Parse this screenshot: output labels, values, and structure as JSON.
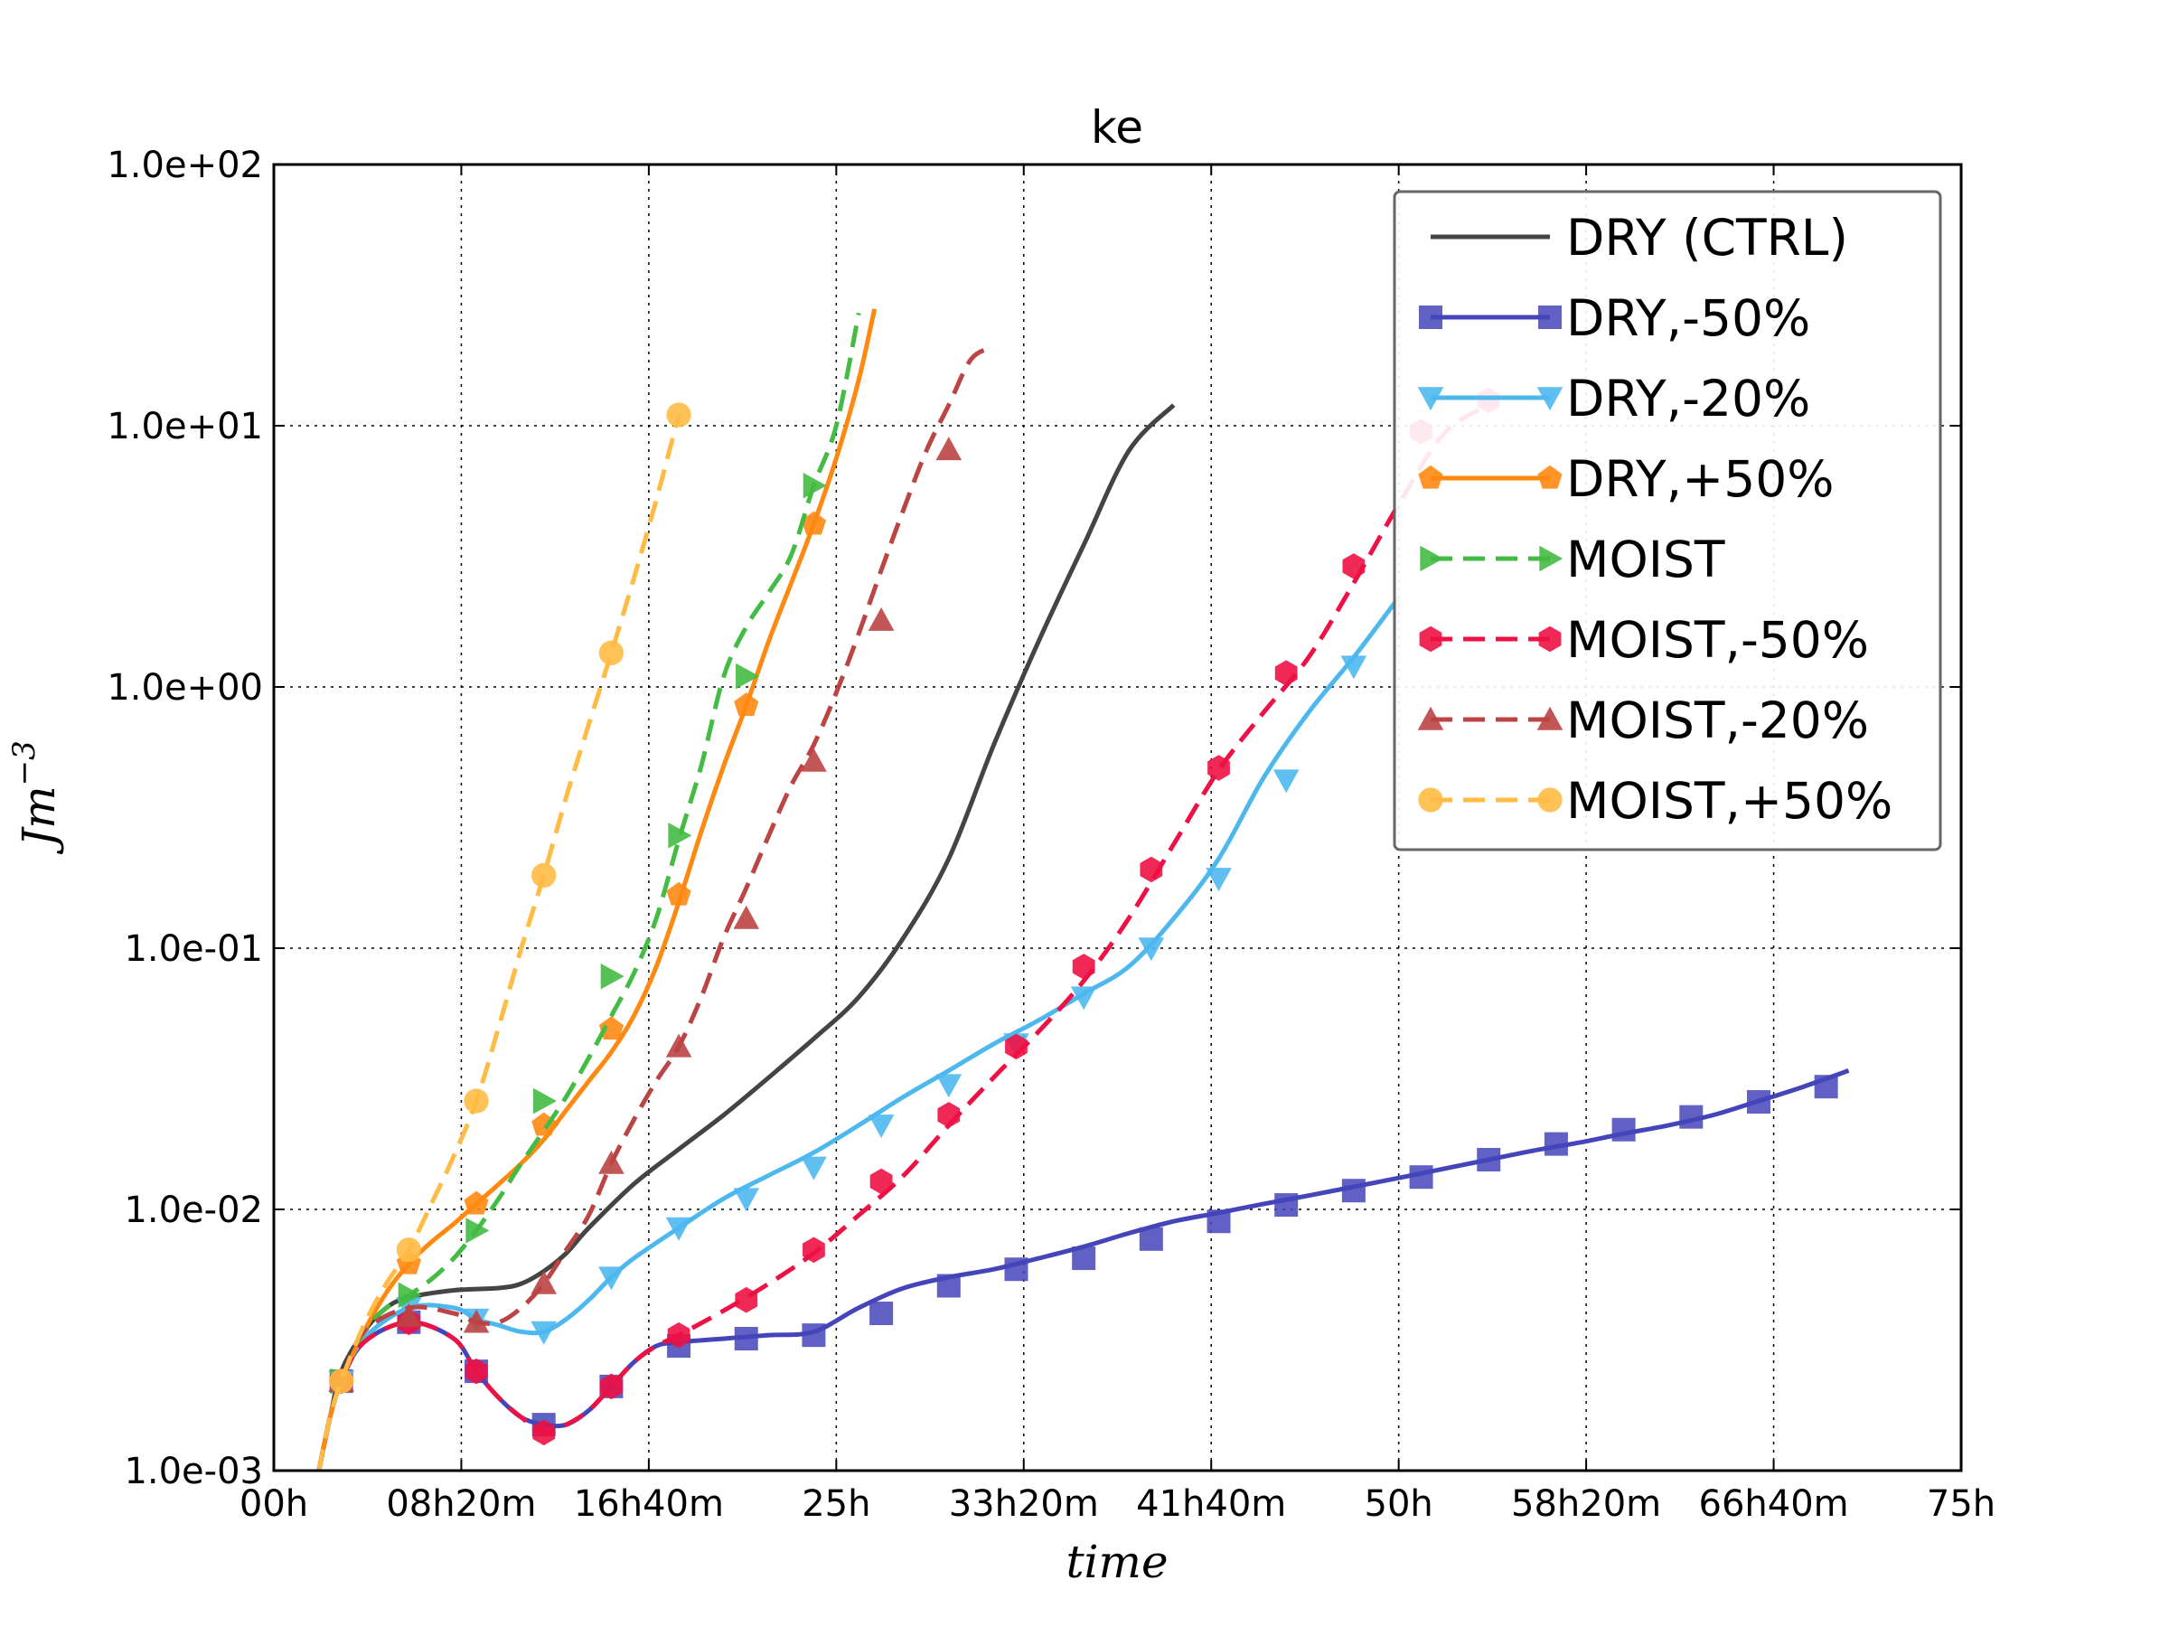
{
  "chart_data": {
    "type": "line",
    "title": "ke",
    "xlabel": "time",
    "ylabel": "Jm",
    "ylabel_sup": "−3",
    "xlim": [
      0,
      75
    ],
    "ylim": [
      0.001,
      100
    ],
    "yscale": "log",
    "grid": true,
    "legend_position": "top-right",
    "x_ticks": [
      {
        "value": 0,
        "label": "00h"
      },
      {
        "value": 8.333,
        "label": "08h20m"
      },
      {
        "value": 16.667,
        "label": "16h40m"
      },
      {
        "value": 25,
        "label": "25h"
      },
      {
        "value": 33.333,
        "label": "33h20m"
      },
      {
        "value": 41.667,
        "label": "41h40m"
      },
      {
        "value": 50,
        "label": "50h"
      },
      {
        "value": 58.333,
        "label": "58h20m"
      },
      {
        "value": 66.667,
        "label": "66h40m"
      },
      {
        "value": 75,
        "label": "75h"
      }
    ],
    "y_ticks": [
      {
        "value": 0.001,
        "label": "1.0e-03"
      },
      {
        "value": 0.01,
        "label": "1.0e-02"
      },
      {
        "value": 0.1,
        "label": "1.0e-01"
      },
      {
        "value": 1,
        "label": "1.0e+00"
      },
      {
        "value": 10,
        "label": "1.0e+01"
      },
      {
        "value": 100,
        "label": "1.0e+02"
      }
    ],
    "series": [
      {
        "name": "DRY (CTRL)",
        "color": "#444444",
        "dash": "solid",
        "marker": "none",
        "x": [
          2,
          2.5,
          3,
          4,
          5,
          6,
          8,
          10,
          11,
          12,
          13,
          14,
          16,
          18,
          20,
          22,
          24,
          26,
          28,
          30,
          32,
          34,
          36,
          38,
          40
        ],
        "y": [
          0.001,
          0.0016,
          0.0024,
          0.0034,
          0.0042,
          0.0046,
          0.0049,
          0.005,
          0.0052,
          0.0058,
          0.0068,
          0.0085,
          0.0125,
          0.017,
          0.023,
          0.032,
          0.045,
          0.065,
          0.11,
          0.22,
          0.6,
          1.5,
          3.5,
          8,
          12
        ]
      },
      {
        "name": "DRY,-50%",
        "color": "#4444bb",
        "dash": "solid",
        "marker": "square",
        "x": [
          2,
          2.5,
          3,
          4,
          6,
          8,
          9,
          10,
          11,
          12,
          13,
          14,
          15,
          16,
          17,
          18,
          20,
          22,
          24,
          26,
          28,
          30,
          32,
          34,
          36,
          38,
          40,
          42,
          44,
          46,
          48,
          50,
          52,
          54,
          56,
          58,
          60,
          62,
          64,
          66,
          68,
          70
        ],
        "y": [
          0.001,
          0.0016,
          0.0022,
          0.0031,
          0.0037,
          0.0032,
          0.0024,
          0.0019,
          0.0016,
          0.0015,
          0.0015,
          0.0017,
          0.0021,
          0.0026,
          0.003,
          0.0031,
          0.0032,
          0.0033,
          0.0034,
          0.0042,
          0.005,
          0.0055,
          0.0059,
          0.0065,
          0.0072,
          0.0081,
          0.009,
          0.0097,
          0.0105,
          0.0113,
          0.0122,
          0.0132,
          0.0143,
          0.0155,
          0.0168,
          0.018,
          0.0195,
          0.021,
          0.023,
          0.026,
          0.0295,
          0.034
        ],
        "marker_x": [
          3,
          6,
          9,
          12,
          15,
          18,
          21,
          24,
          27,
          30,
          33,
          36,
          39,
          42,
          45,
          48,
          51,
          54,
          57,
          60,
          63,
          66,
          69
        ],
        "marker_y": [
          0.0022,
          0.0037,
          0.0024,
          0.0015,
          0.0021,
          0.003,
          0.0032,
          0.0033,
          0.004,
          0.0051,
          0.0059,
          0.0065,
          0.0077,
          0.009,
          0.0104,
          0.0118,
          0.0133,
          0.0155,
          0.0178,
          0.0202,
          0.0226,
          0.0258,
          0.0295
        ]
      },
      {
        "name": "DRY,-20%",
        "color": "#4db8ee",
        "dash": "solid",
        "marker": "triangle-down",
        "x": [
          2,
          2.5,
          3,
          4,
          6,
          8,
          9,
          10,
          11,
          12,
          13,
          14,
          15,
          16,
          18,
          20,
          22,
          24,
          26,
          28,
          30,
          32,
          34,
          36,
          38,
          40,
          42,
          44,
          46,
          48,
          50
        ],
        "y": [
          0.001,
          0.0016,
          0.0022,
          0.0032,
          0.0042,
          0.0042,
          0.0038,
          0.0036,
          0.0034,
          0.0034,
          0.0038,
          0.0045,
          0.0055,
          0.0065,
          0.0085,
          0.011,
          0.0135,
          0.0165,
          0.021,
          0.027,
          0.034,
          0.043,
          0.053,
          0.067,
          0.085,
          0.13,
          0.22,
          0.45,
          0.8,
          1.3,
          2.2
        ],
        "marker_x": [
          3,
          6,
          9,
          12,
          15,
          18,
          21,
          24,
          27,
          30,
          33,
          36,
          39,
          42,
          45,
          48
        ],
        "marker_y": [
          0.0022,
          0.0042,
          0.0038,
          0.0034,
          0.0055,
          0.0085,
          0.011,
          0.0145,
          0.021,
          0.03,
          0.043,
          0.065,
          0.1,
          0.185,
          0.44,
          1.2
        ]
      },
      {
        "name": "DRY,+50%",
        "color": "#ff8811",
        "dash": "solid",
        "marker": "pentagon",
        "x": [
          2,
          2.5,
          3,
          4,
          5,
          6,
          7,
          8,
          9,
          10,
          11,
          12,
          13,
          14,
          15,
          16,
          17,
          18,
          19,
          20,
          21,
          22,
          23,
          24,
          25,
          26,
          26.7
        ],
        "y": [
          0.001,
          0.0016,
          0.0022,
          0.0034,
          0.0048,
          0.0062,
          0.0075,
          0.0088,
          0.0105,
          0.0125,
          0.015,
          0.0185,
          0.024,
          0.031,
          0.04,
          0.055,
          0.085,
          0.15,
          0.28,
          0.5,
          0.85,
          1.5,
          2.5,
          4.2,
          7.5,
          15,
          28
        ],
        "marker_x": [
          3,
          6,
          9,
          12,
          15,
          18,
          21,
          24
        ],
        "marker_y": [
          0.0022,
          0.0062,
          0.0105,
          0.021,
          0.049,
          0.16,
          0.85,
          4.2
        ]
      },
      {
        "name": "MOIST",
        "color": "#44bb44",
        "dash": "dashed",
        "marker": "triangle-right",
        "x": [
          2,
          2.5,
          3,
          4,
          5,
          6,
          7,
          8,
          9,
          10,
          11,
          12,
          13,
          14,
          15,
          16,
          17,
          18,
          19,
          20,
          21,
          22,
          23,
          24,
          25,
          26
        ],
        "y": [
          0.001,
          0.0016,
          0.0022,
          0.0034,
          0.0042,
          0.0047,
          0.0054,
          0.0065,
          0.0083,
          0.011,
          0.015,
          0.02,
          0.027,
          0.038,
          0.055,
          0.08,
          0.13,
          0.26,
          0.5,
          1.1,
          1.7,
          2.3,
          3.2,
          5.9,
          10,
          27
        ],
        "marker_x": [
          3,
          6,
          9,
          12,
          15,
          18,
          21,
          24
        ],
        "marker_y": [
          0.0022,
          0.0047,
          0.0083,
          0.026,
          0.078,
          0.27,
          1.1,
          5.9
        ]
      },
      {
        "name": "MOIST,-50%",
        "color": "#ee1144",
        "dash": "dashed",
        "marker": "hexagon",
        "x": [
          2,
          2.5,
          3,
          4,
          6,
          8,
          9,
          10,
          11,
          12,
          13,
          14,
          15,
          16,
          17,
          18,
          20,
          22,
          24,
          26,
          28,
          30,
          32,
          34,
          36,
          38,
          40,
          42,
          44,
          46,
          48,
          50,
          52,
          54
        ],
        "y": [
          0.001,
          0.0016,
          0.0022,
          0.0031,
          0.0037,
          0.0032,
          0.0024,
          0.0019,
          0.0016,
          0.0014,
          0.0015,
          0.0017,
          0.0021,
          0.0026,
          0.003,
          0.0033,
          0.0041,
          0.0052,
          0.0068,
          0.0095,
          0.0135,
          0.021,
          0.032,
          0.048,
          0.075,
          0.13,
          0.25,
          0.48,
          0.8,
          1.3,
          2.5,
          5,
          9.3,
          12
        ],
        "marker_x": [
          3,
          6,
          9,
          12,
          15,
          18,
          21,
          24,
          27,
          30,
          33,
          36,
          39,
          42,
          45,
          48,
          51,
          54
        ],
        "marker_y": [
          0.0022,
          0.0037,
          0.0024,
          0.0014,
          0.0021,
          0.0033,
          0.0045,
          0.007,
          0.0128,
          0.023,
          0.042,
          0.085,
          0.2,
          0.49,
          1.13,
          2.9,
          9.5,
          12.5
        ]
      },
      {
        "name": "MOIST,-20%",
        "color": "#bb4444",
        "dash": "dashed",
        "marker": "triangle-up",
        "x": [
          2,
          2.5,
          3,
          4,
          6,
          8,
          9,
          10,
          11,
          12,
          13,
          14,
          15,
          16,
          17,
          18,
          19,
          20,
          21,
          22,
          23,
          24,
          25,
          26,
          27,
          28,
          29,
          30,
          31,
          32
        ],
        "y": [
          0.001,
          0.0016,
          0.0022,
          0.0034,
          0.0042,
          0.004,
          0.0037,
          0.0037,
          0.0042,
          0.0052,
          0.007,
          0.0095,
          0.015,
          0.022,
          0.031,
          0.042,
          0.065,
          0.11,
          0.17,
          0.27,
          0.42,
          0.6,
          0.95,
          1.6,
          2.8,
          4.8,
          8,
          12,
          18,
          20
        ],
        "marker_x": [
          3,
          6,
          9,
          12,
          15,
          18,
          21,
          24,
          27,
          30
        ],
        "marker_y": [
          0.0022,
          0.0039,
          0.0037,
          0.0052,
          0.015,
          0.042,
          0.13,
          0.52,
          1.8,
          8.1
        ]
      },
      {
        "name": "MOIST,+50%",
        "color": "#ffbb44",
        "dash": "dashed",
        "marker": "circle",
        "x": [
          2,
          2.5,
          3,
          4,
          5,
          6,
          7,
          8,
          9,
          10,
          11,
          12,
          13,
          14,
          15,
          16,
          17,
          18
        ],
        "y": [
          0.001,
          0.0016,
          0.0022,
          0.0036,
          0.0052,
          0.007,
          0.0105,
          0.016,
          0.026,
          0.05,
          0.1,
          0.19,
          0.38,
          0.72,
          1.35,
          2.6,
          5.2,
          11
        ],
        "marker_x": [
          3,
          6,
          9,
          12,
          15,
          18
        ],
        "marker_y": [
          0.0022,
          0.007,
          0.026,
          0.19,
          1.35,
          11
        ]
      }
    ]
  }
}
